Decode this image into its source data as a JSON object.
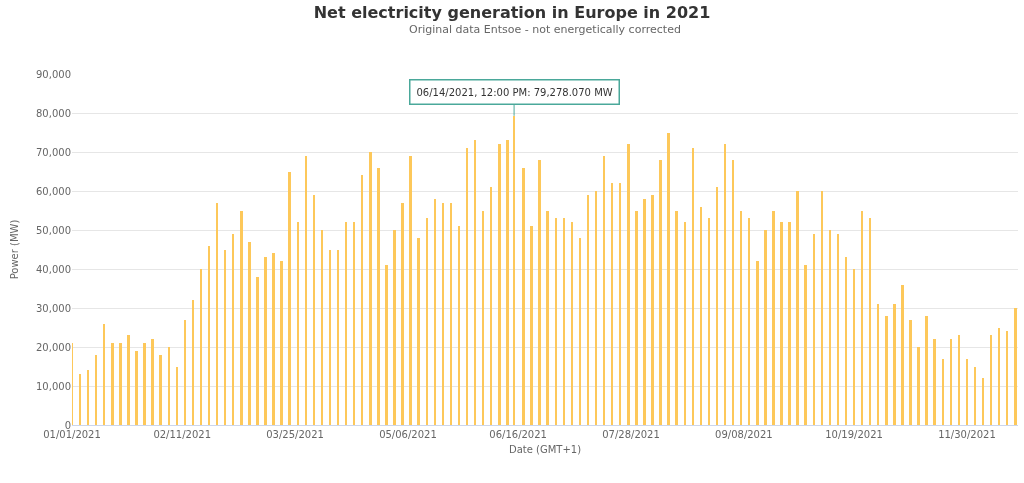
{
  "chart_data": {
    "type": "bar",
    "title": "Net electricity generation in Europe in 2021",
    "subtitle": "Original data Entsoe - not energetically corrected",
    "xlabel": "Date (GMT+1)",
    "ylabel": "Power (MW)",
    "x": [
      "2021-01-01",
      "2021-01-04",
      "2021-01-07",
      "2021-01-10",
      "2021-01-13",
      "2021-01-16",
      "2021-01-19",
      "2021-01-22",
      "2021-01-25",
      "2021-01-28",
      "2021-01-31",
      "2021-02-03",
      "2021-02-06",
      "2021-02-09",
      "2021-02-12",
      "2021-02-15",
      "2021-02-18",
      "2021-02-21",
      "2021-02-24",
      "2021-02-27",
      "2021-03-02",
      "2021-03-05",
      "2021-03-08",
      "2021-03-11",
      "2021-03-14",
      "2021-03-17",
      "2021-03-20",
      "2021-03-23",
      "2021-03-26",
      "2021-03-29",
      "2021-04-01",
      "2021-04-04",
      "2021-04-07",
      "2021-04-10",
      "2021-04-13",
      "2021-04-16",
      "2021-04-19",
      "2021-04-22",
      "2021-04-25",
      "2021-04-28",
      "2021-05-01",
      "2021-05-04",
      "2021-05-07",
      "2021-05-10",
      "2021-05-13",
      "2021-05-16",
      "2021-05-19",
      "2021-05-22",
      "2021-05-25",
      "2021-05-28",
      "2021-05-31",
      "2021-06-03",
      "2021-06-06",
      "2021-06-09",
      "2021-06-12",
      "2021-06-14T12:00",
      "2021-06-18",
      "2021-06-21",
      "2021-06-24",
      "2021-06-27",
      "2021-06-30",
      "2021-07-03",
      "2021-07-06",
      "2021-07-09",
      "2021-07-12",
      "2021-07-15",
      "2021-07-18",
      "2021-07-21",
      "2021-07-24",
      "2021-07-27",
      "2021-07-30",
      "2021-08-02",
      "2021-08-05",
      "2021-08-08",
      "2021-08-11",
      "2021-08-14",
      "2021-08-17",
      "2021-08-20",
      "2021-08-23",
      "2021-08-26",
      "2021-08-29",
      "2021-09-01",
      "2021-09-04",
      "2021-09-07",
      "2021-09-10",
      "2021-09-13",
      "2021-09-16",
      "2021-09-19",
      "2021-09-22",
      "2021-09-25",
      "2021-09-28",
      "2021-10-01",
      "2021-10-04",
      "2021-10-07",
      "2021-10-10",
      "2021-10-13",
      "2021-10-16",
      "2021-10-19",
      "2021-10-22",
      "2021-10-25",
      "2021-10-28",
      "2021-10-31",
      "2021-11-03",
      "2021-11-06",
      "2021-11-09",
      "2021-11-12",
      "2021-11-15",
      "2021-11-18",
      "2021-11-21",
      "2021-11-24",
      "2021-11-27",
      "2021-11-30",
      "2021-12-03",
      "2021-12-06",
      "2021-12-09",
      "2021-12-12",
      "2021-12-15",
      "2021-12-18"
    ],
    "series": [
      {
        "color": "#fdc85a",
        "values": [
          21000,
          13000,
          14000,
          18000,
          26000,
          21000,
          21000,
          23000,
          19000,
          21000,
          22000,
          18000,
          20000,
          15000,
          27000,
          32000,
          40000,
          46000,
          57000,
          45000,
          49000,
          55000,
          47000,
          38000,
          43000,
          44000,
          42000,
          65000,
          52000,
          69000,
          59000,
          50000,
          45000,
          45000,
          52000,
          52000,
          64000,
          70000,
          66000,
          41000,
          50000,
          57000,
          69000,
          48000,
          53000,
          58000,
          57000,
          57000,
          51000,
          71000,
          73000,
          55000,
          61000,
          72000,
          73000,
          79278.07,
          66000,
          51000,
          68000,
          55000,
          53000,
          53000,
          52000,
          48000,
          59000,
          60000,
          69000,
          62000,
          62000,
          72000,
          55000,
          58000,
          59000,
          68000,
          75000,
          55000,
          52000,
          71000,
          56000,
          53000,
          61000,
          72000,
          68000,
          55000,
          53000,
          42000,
          50000,
          55000,
          52000,
          52000,
          60000,
          41000,
          49000,
          60000,
          50000,
          49000,
          43000,
          40000,
          55000,
          53000,
          31000,
          28000,
          31000,
          36000,
          27000,
          20000,
          28000,
          22000,
          17000,
          22000,
          23000,
          17000,
          15000,
          12000,
          23000,
          25000,
          24000,
          30000
        ]
      }
    ],
    "xlim": [
      "2021-01-01",
      "2021-12-19"
    ],
    "xticks": [
      {
        "value": "2021-01-01",
        "label": "01/01/2021"
      },
      {
        "value": "2021-02-11",
        "label": "02/11/2021"
      },
      {
        "value": "2021-03-25",
        "label": "03/25/2021"
      },
      {
        "value": "2021-05-06",
        "label": "05/06/2021"
      },
      {
        "value": "2021-06-16",
        "label": "06/16/2021"
      },
      {
        "value": "2021-07-28",
        "label": "07/28/2021"
      },
      {
        "value": "2021-09-08",
        "label": "09/08/2021"
      },
      {
        "value": "2021-10-19",
        "label": "10/19/2021"
      },
      {
        "value": "2021-11-30",
        "label": "11/30/2021"
      }
    ],
    "ylim": [
      0,
      90000
    ],
    "yticks": [
      {
        "value": 0,
        "label": "0"
      },
      {
        "value": 10000,
        "label": "10,000"
      },
      {
        "value": 20000,
        "label": "20,000"
      },
      {
        "value": 30000,
        "label": "30,000"
      },
      {
        "value": 40000,
        "label": "40,000"
      },
      {
        "value": 50000,
        "label": "50,000"
      },
      {
        "value": 60000,
        "label": "60,000"
      },
      {
        "value": 70000,
        "label": "70,000"
      },
      {
        "value": 80000,
        "label": "80,000"
      },
      {
        "value": 90000,
        "label": "90,000"
      }
    ],
    "grid": "y",
    "annotations": [
      {
        "text": "06/14/2021, 12:00 PM: 79,278.070 MW",
        "x": "2021-06-14T12:00",
        "y": 79278.07
      }
    ]
  }
}
